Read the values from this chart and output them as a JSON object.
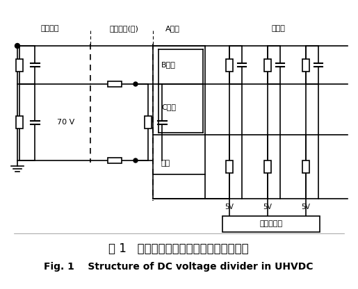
{
  "title_cn": "图 1   特高压直流输电工程直流分压器结构",
  "title_en": "Fig. 1    Structure of DC voltage divider in UHVDC",
  "label_fen_ya_dan_yuan": "分压单元",
  "label_ping_heng": "平衡单元(板)",
  "label_A": "A系统",
  "label_fen_ya_ban": "分压板",
  "label_B": "B系统",
  "label_C": "C系统",
  "label_bei_yong": "备用",
  "label_70V": "70 V",
  "label_5V": "5V",
  "label_iso_amp": "隔离放大器",
  "bg_color": "#ffffff",
  "line_color": "#000000",
  "font_size_label": 8,
  "font_size_title_cn": 12,
  "font_size_title_en": 10
}
